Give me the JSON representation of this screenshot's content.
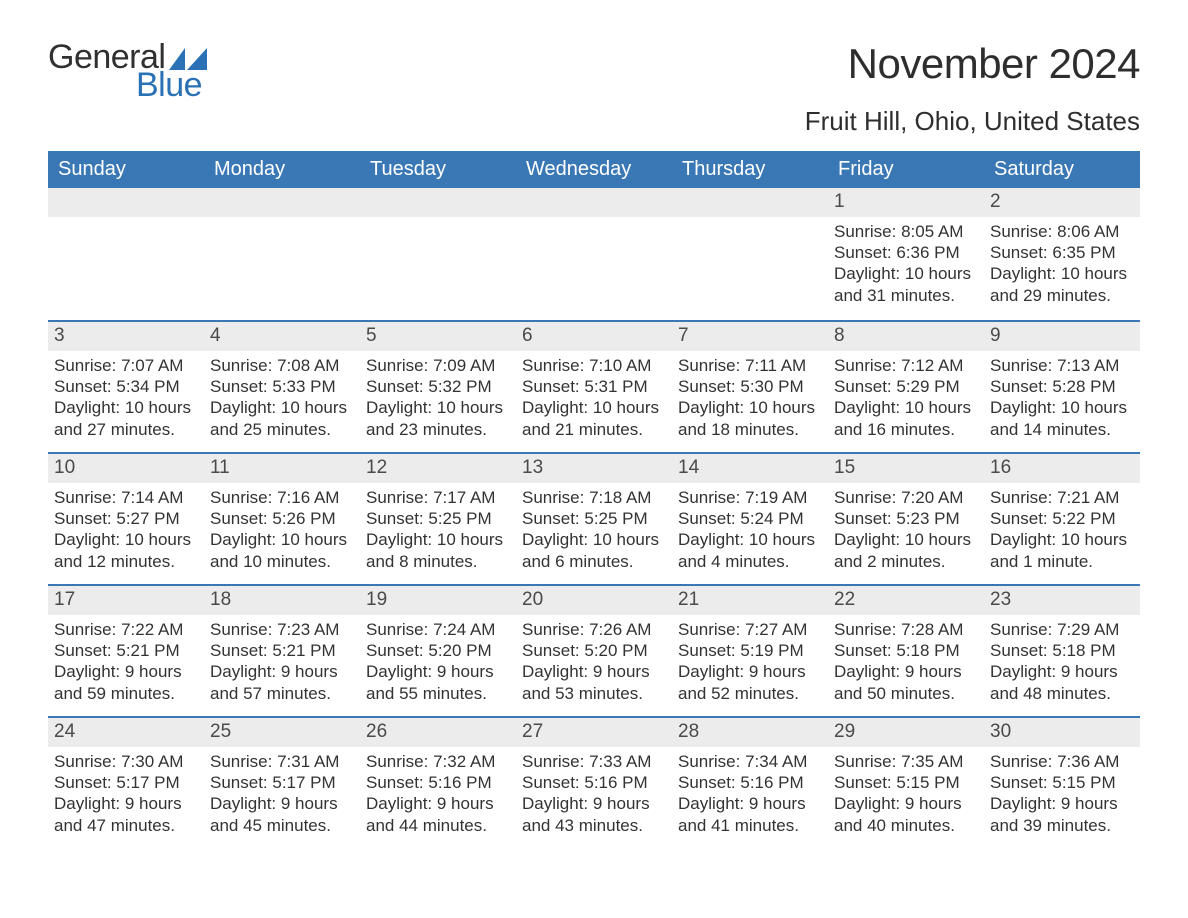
{
  "brand": {
    "general": "General",
    "blue": "Blue",
    "sail_color": "#2a72b5"
  },
  "title": {
    "month": "November 2024",
    "location": "Fruit Hill, Ohio, United States"
  },
  "colors": {
    "header_bg": "#3a78b5",
    "header_text": "#ffffff",
    "week_divider": "#3a78b5",
    "daynum_bg": "#ececec",
    "body_text": "#333333",
    "background": "#ffffff"
  },
  "typography": {
    "month_fontsize": 42,
    "location_fontsize": 26,
    "header_fontsize": 20,
    "daynum_fontsize": 19,
    "body_fontsize": 17
  },
  "days_of_week": [
    "Sunday",
    "Monday",
    "Tuesday",
    "Wednesday",
    "Thursday",
    "Friday",
    "Saturday"
  ],
  "weeks": [
    [
      {
        "empty": true
      },
      {
        "empty": true
      },
      {
        "empty": true
      },
      {
        "empty": true
      },
      {
        "empty": true
      },
      {
        "n": "1",
        "sunrise": "Sunrise: 8:05 AM",
        "sunset": "Sunset: 6:36 PM",
        "d1": "Daylight: 10 hours",
        "d2": "and 31 minutes."
      },
      {
        "n": "2",
        "sunrise": "Sunrise: 8:06 AM",
        "sunset": "Sunset: 6:35 PM",
        "d1": "Daylight: 10 hours",
        "d2": "and 29 minutes."
      }
    ],
    [
      {
        "n": "3",
        "sunrise": "Sunrise: 7:07 AM",
        "sunset": "Sunset: 5:34 PM",
        "d1": "Daylight: 10 hours",
        "d2": "and 27 minutes."
      },
      {
        "n": "4",
        "sunrise": "Sunrise: 7:08 AM",
        "sunset": "Sunset: 5:33 PM",
        "d1": "Daylight: 10 hours",
        "d2": "and 25 minutes."
      },
      {
        "n": "5",
        "sunrise": "Sunrise: 7:09 AM",
        "sunset": "Sunset: 5:32 PM",
        "d1": "Daylight: 10 hours",
        "d2": "and 23 minutes."
      },
      {
        "n": "6",
        "sunrise": "Sunrise: 7:10 AM",
        "sunset": "Sunset: 5:31 PM",
        "d1": "Daylight: 10 hours",
        "d2": "and 21 minutes."
      },
      {
        "n": "7",
        "sunrise": "Sunrise: 7:11 AM",
        "sunset": "Sunset: 5:30 PM",
        "d1": "Daylight: 10 hours",
        "d2": "and 18 minutes."
      },
      {
        "n": "8",
        "sunrise": "Sunrise: 7:12 AM",
        "sunset": "Sunset: 5:29 PM",
        "d1": "Daylight: 10 hours",
        "d2": "and 16 minutes."
      },
      {
        "n": "9",
        "sunrise": "Sunrise: 7:13 AM",
        "sunset": "Sunset: 5:28 PM",
        "d1": "Daylight: 10 hours",
        "d2": "and 14 minutes."
      }
    ],
    [
      {
        "n": "10",
        "sunrise": "Sunrise: 7:14 AM",
        "sunset": "Sunset: 5:27 PM",
        "d1": "Daylight: 10 hours",
        "d2": "and 12 minutes."
      },
      {
        "n": "11",
        "sunrise": "Sunrise: 7:16 AM",
        "sunset": "Sunset: 5:26 PM",
        "d1": "Daylight: 10 hours",
        "d2": "and 10 minutes."
      },
      {
        "n": "12",
        "sunrise": "Sunrise: 7:17 AM",
        "sunset": "Sunset: 5:25 PM",
        "d1": "Daylight: 10 hours",
        "d2": "and 8 minutes."
      },
      {
        "n": "13",
        "sunrise": "Sunrise: 7:18 AM",
        "sunset": "Sunset: 5:25 PM",
        "d1": "Daylight: 10 hours",
        "d2": "and 6 minutes."
      },
      {
        "n": "14",
        "sunrise": "Sunrise: 7:19 AM",
        "sunset": "Sunset: 5:24 PM",
        "d1": "Daylight: 10 hours",
        "d2": "and 4 minutes."
      },
      {
        "n": "15",
        "sunrise": "Sunrise: 7:20 AM",
        "sunset": "Sunset: 5:23 PM",
        "d1": "Daylight: 10 hours",
        "d2": "and 2 minutes."
      },
      {
        "n": "16",
        "sunrise": "Sunrise: 7:21 AM",
        "sunset": "Sunset: 5:22 PM",
        "d1": "Daylight: 10 hours",
        "d2": "and 1 minute."
      }
    ],
    [
      {
        "n": "17",
        "sunrise": "Sunrise: 7:22 AM",
        "sunset": "Sunset: 5:21 PM",
        "d1": "Daylight: 9 hours",
        "d2": "and 59 minutes."
      },
      {
        "n": "18",
        "sunrise": "Sunrise: 7:23 AM",
        "sunset": "Sunset: 5:21 PM",
        "d1": "Daylight: 9 hours",
        "d2": "and 57 minutes."
      },
      {
        "n": "19",
        "sunrise": "Sunrise: 7:24 AM",
        "sunset": "Sunset: 5:20 PM",
        "d1": "Daylight: 9 hours",
        "d2": "and 55 minutes."
      },
      {
        "n": "20",
        "sunrise": "Sunrise: 7:26 AM",
        "sunset": "Sunset: 5:20 PM",
        "d1": "Daylight: 9 hours",
        "d2": "and 53 minutes."
      },
      {
        "n": "21",
        "sunrise": "Sunrise: 7:27 AM",
        "sunset": "Sunset: 5:19 PM",
        "d1": "Daylight: 9 hours",
        "d2": "and 52 minutes."
      },
      {
        "n": "22",
        "sunrise": "Sunrise: 7:28 AM",
        "sunset": "Sunset: 5:18 PM",
        "d1": "Daylight: 9 hours",
        "d2": "and 50 minutes."
      },
      {
        "n": "23",
        "sunrise": "Sunrise: 7:29 AM",
        "sunset": "Sunset: 5:18 PM",
        "d1": "Daylight: 9 hours",
        "d2": "and 48 minutes."
      }
    ],
    [
      {
        "n": "24",
        "sunrise": "Sunrise: 7:30 AM",
        "sunset": "Sunset: 5:17 PM",
        "d1": "Daylight: 9 hours",
        "d2": "and 47 minutes."
      },
      {
        "n": "25",
        "sunrise": "Sunrise: 7:31 AM",
        "sunset": "Sunset: 5:17 PM",
        "d1": "Daylight: 9 hours",
        "d2": "and 45 minutes."
      },
      {
        "n": "26",
        "sunrise": "Sunrise: 7:32 AM",
        "sunset": "Sunset: 5:16 PM",
        "d1": "Daylight: 9 hours",
        "d2": "and 44 minutes."
      },
      {
        "n": "27",
        "sunrise": "Sunrise: 7:33 AM",
        "sunset": "Sunset: 5:16 PM",
        "d1": "Daylight: 9 hours",
        "d2": "and 43 minutes."
      },
      {
        "n": "28",
        "sunrise": "Sunrise: 7:34 AM",
        "sunset": "Sunset: 5:16 PM",
        "d1": "Daylight: 9 hours",
        "d2": "and 41 minutes."
      },
      {
        "n": "29",
        "sunrise": "Sunrise: 7:35 AM",
        "sunset": "Sunset: 5:15 PM",
        "d1": "Daylight: 9 hours",
        "d2": "and 40 minutes."
      },
      {
        "n": "30",
        "sunrise": "Sunrise: 7:36 AM",
        "sunset": "Sunset: 5:15 PM",
        "d1": "Daylight: 9 hours",
        "d2": "and 39 minutes."
      }
    ]
  ]
}
